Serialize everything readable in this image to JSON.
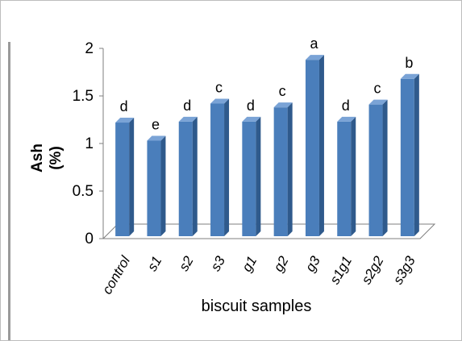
{
  "chart_data": {
    "type": "bar",
    "title": "",
    "xlabel": "biscuit samples",
    "ylabel": [
      "Ash",
      "(%)"
    ],
    "ylim": [
      0,
      2
    ],
    "yticks": [
      "0",
      "0.5",
      "1",
      "1.5",
      "2"
    ],
    "categories": [
      "control",
      "s1",
      "s2",
      "s3",
      "g1",
      "g2",
      "g3",
      "s1g1",
      "s2g2",
      "s3g3"
    ],
    "values": [
      1.22,
      1.03,
      1.23,
      1.42,
      1.23,
      1.38,
      1.88,
      1.23,
      1.41,
      1.68
    ],
    "data_labels": [
      "d",
      "e",
      "d",
      "c",
      "d",
      "c",
      "a",
      "d",
      "c",
      "b"
    ],
    "grid": false,
    "legend": "none",
    "colors": {
      "bar_front": "#4a7ebb",
      "bar_side": "#2f5a8c",
      "bar_top": "#7aa3d6",
      "floor": "#ffffff",
      "axis": "#7f7f7f"
    }
  }
}
